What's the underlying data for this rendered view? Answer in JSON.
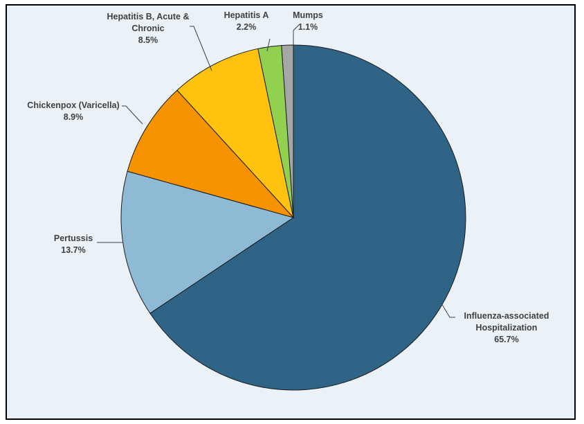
{
  "chart_data": {
    "type": "pie",
    "title": "",
    "slices": [
      {
        "name": "Influenza-associated Hospitalization",
        "label_lines": [
          "Influenza-associated",
          "Hospitalization"
        ],
        "value": 65.7,
        "value_label": "65.7%",
        "color": "#2f6487"
      },
      {
        "name": "Pertussis",
        "label_lines": [
          "Pertussis"
        ],
        "value": 13.7,
        "value_label": "13.7%",
        "color": "#8fbad6"
      },
      {
        "name": "Chickenpox (Varicella)",
        "label_lines": [
          "Chickenpox (Varicella)"
        ],
        "value": 8.9,
        "value_label": "8.9%",
        "color": "#f59300"
      },
      {
        "name": "Hepatitis B, Acute & Chronic",
        "label_lines": [
          "Hepatitis B, Acute &",
          "Chronic"
        ],
        "value": 8.5,
        "value_label": "8.5%",
        "color": "#ffc20e"
      },
      {
        "name": "Hepatitis A",
        "label_lines": [
          "Hepatitis A"
        ],
        "value": 2.2,
        "value_label": "2.2%",
        "color": "#92d050"
      },
      {
        "name": "Mumps",
        "label_lines": [
          "Mumps"
        ],
        "value": 1.1,
        "value_label": "1.1%",
        "color": "#a6a6a6"
      }
    ],
    "legend": "none",
    "labels": "outside with leader lines"
  }
}
